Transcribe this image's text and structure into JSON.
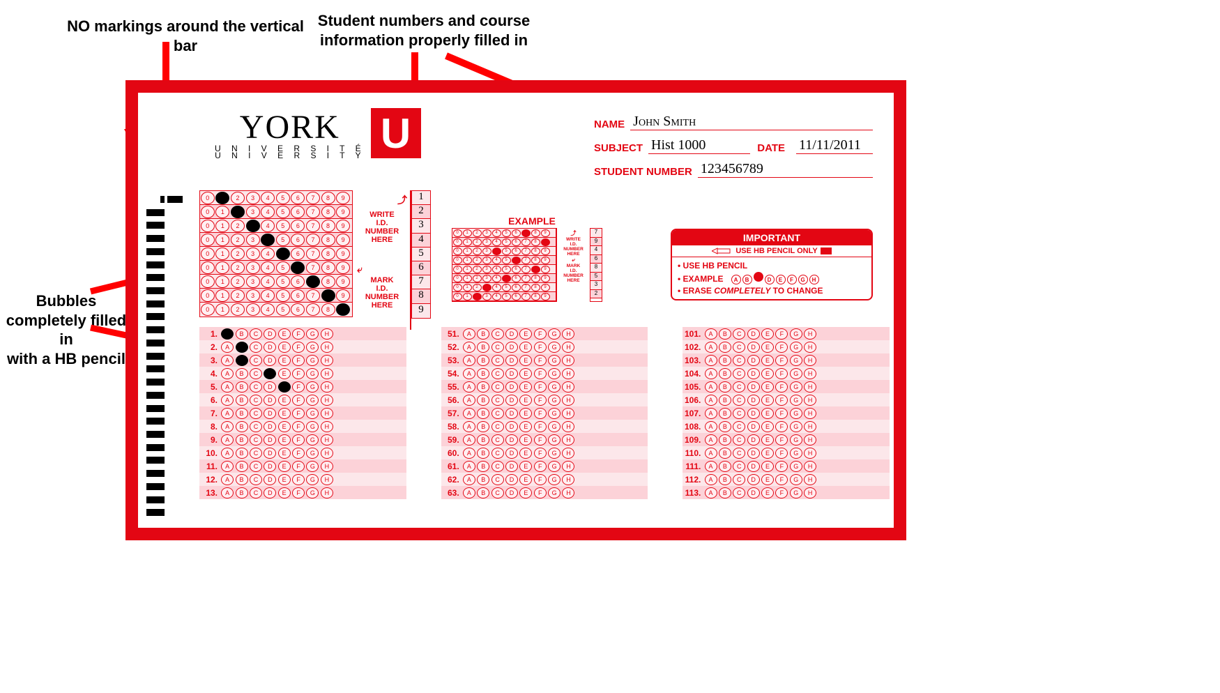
{
  "colors": {
    "red": "#e30613",
    "pink_dark": "#fcd2d8",
    "pink_light": "#fce7ea"
  },
  "annotations": {
    "top_left": "NO markings around the vertical bar",
    "top_right": "Student numbers and course\ninformation properly filled in",
    "left": "Bubbles\ncompletely filled in\nwith a HB pencil"
  },
  "logo": {
    "name": "YORK",
    "sub1": "U N I V E R S I T É",
    "sub2": "U N I V E R S I T Y",
    "u": "U"
  },
  "info": {
    "name_label": "NAME",
    "name_value": "John Smith",
    "subject_label": "SUBJECT",
    "subject_value": "Hist 1000",
    "date_label": "DATE",
    "date_value": "11/11/2011",
    "student_number_label": "STUDENT NUMBER",
    "student_number_value": "123456789"
  },
  "write_id": {
    "write": "WRITE",
    "id": "I.D.",
    "number": "NUMBER",
    "here": "HERE",
    "mark": "MARK",
    "id2": "I.D.",
    "number2": "NUMBER",
    "here2": "HERE"
  },
  "id_digits": [
    "1",
    "2",
    "3",
    "4",
    "5",
    "6",
    "7",
    "8",
    "9"
  ],
  "id_filled": [
    1,
    2,
    3,
    4,
    5,
    6,
    7,
    8,
    9
  ],
  "example": {
    "title": "EXAMPLE",
    "digits": [
      "7",
      "9",
      "4",
      "6",
      "8",
      "5",
      "3",
      "2"
    ],
    "filled": [
      7,
      9,
      4,
      6,
      8,
      5,
      3,
      2
    ]
  },
  "important": {
    "title": "IMPORTANT",
    "pencil_text": "USE HB PENCIL ONLY",
    "line1": "• USE HB PENCIL",
    "line2_label": "• EXAMPLE",
    "line2_letters": [
      "A",
      "B",
      "C",
      "D",
      "E",
      "F",
      "G",
      "H"
    ],
    "line2_filled_index": 2,
    "line3_a": "• ERASE ",
    "line3_b": "COMPLETELY",
    "line3_c": " TO CHANGE"
  },
  "answer_letters": [
    "A",
    "B",
    "C",
    "D",
    "E",
    "F",
    "G",
    "H"
  ],
  "answer_filled": {
    "1": 0,
    "2": 1,
    "3": 1,
    "4": 3,
    "5": 4
  },
  "columns": {
    "c1_start": 1,
    "c1_end": 13,
    "c2_start": 51,
    "c2_end": 63,
    "c3_start": 101,
    "c3_end": 113
  },
  "timing_marks_count": 24
}
